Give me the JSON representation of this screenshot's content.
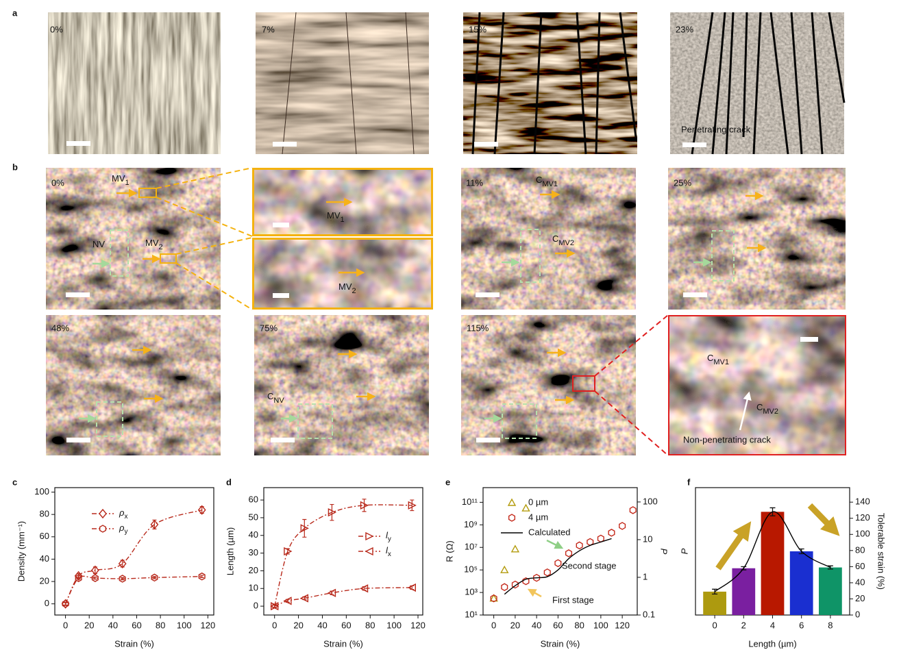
{
  "panel_labels": [
    "a",
    "b",
    "c",
    "d",
    "e",
    "f"
  ],
  "panel_a": {
    "labels": [
      "0%",
      "7%",
      "15%",
      "23%"
    ],
    "annotation": "Penetrating crack"
  },
  "panel_b": {
    "strain_labels": [
      "0%",
      "11%",
      "25%",
      "48%",
      "75%",
      "115%"
    ],
    "markers": [
      {
        "main": "MV",
        "sub": "1"
      },
      {
        "main": "NV"
      },
      {
        "main": "MV",
        "sub": "2"
      },
      {
        "main": "MV",
        "sub": "1"
      },
      {
        "main": "MV",
        "sub": "2"
      },
      {
        "main": "C",
        "sub": "MV1"
      },
      {
        "main": "C",
        "sub": "MV2"
      },
      {
        "main": "C",
        "sub": "NV"
      },
      {
        "main": "C",
        "sub": "MV1"
      },
      {
        "main": "C",
        "sub": "MV2"
      }
    ],
    "annotation": "Non-penetrating crack"
  },
  "chart_data": [
    {
      "type": "line",
      "xlabel": "Strain (%)",
      "ylabel": "Density (mm⁻¹)",
      "xlim": [
        -9,
        125
      ],
      "ylim": [
        -10,
        104
      ],
      "xticks": [
        0,
        20,
        40,
        60,
        80,
        100,
        120
      ],
      "yticks": [
        0,
        20,
        40,
        60,
        80,
        100
      ],
      "legend": "upper left",
      "legend_subscript": true,
      "series": [
        {
          "name": "ρx",
          "color": "#b8291b",
          "marker": "diamond",
          "linestyle": "dashdot",
          "x": [
            0,
            11,
            25,
            48,
            75,
            115
          ],
          "values": [
            0,
            25,
            30,
            36,
            71,
            84
          ],
          "errors": [
            1.5,
            2,
            3,
            3,
            4,
            3
          ]
        },
        {
          "name": "ρy",
          "color": "#b8291b",
          "marker": "hexagon",
          "linestyle": "dashdot",
          "x": [
            0,
            11,
            25,
            48,
            75,
            115
          ],
          "values": [
            0,
            23,
            23,
            22.5,
            23.5,
            24.5
          ],
          "errors": [
            1,
            1,
            1,
            1,
            1,
            1
          ]
        }
      ]
    },
    {
      "type": "line",
      "xlabel": "Strain (%)",
      "ylabel": "Length (µm)",
      "xlim": [
        -9,
        124
      ],
      "ylim": [
        -5,
        67
      ],
      "xticks": [
        0,
        20,
        40,
        60,
        80,
        100,
        120
      ],
      "yticks": [
        0,
        10,
        20,
        30,
        40,
        50,
        60
      ],
      "legend": "center right",
      "legend_subscript": true,
      "series": [
        {
          "name": "ly",
          "color": "#b8291b",
          "marker": "triangle-right",
          "linestyle": "dashdot",
          "x": [
            0,
            11,
            25,
            48,
            75,
            115
          ],
          "values": [
            0,
            31,
            44,
            53,
            57,
            57
          ],
          "errors": [
            1,
            1.5,
            5,
            4.5,
            3.5,
            3
          ]
        },
        {
          "name": "lx",
          "color": "#b8291b",
          "marker": "triangle-left",
          "linestyle": "dashdot",
          "x": [
            0,
            11,
            25,
            48,
            75,
            115
          ],
          "values": [
            0,
            3,
            4.5,
            7.5,
            10,
            10.5
          ],
          "errors": [
            0.8,
            0.8,
            0.8,
            1,
            1,
            1
          ]
        }
      ]
    },
    {
      "type": "scatter",
      "xlabel": "Strain (%)",
      "ylabel": "R (Ω)",
      "y2label": "P",
      "xlim": [
        -10,
        134
      ],
      "ylim": [
        10,
        2000000000000
      ],
      "ylog": true,
      "y2lim": [
        0.1,
        240
      ],
      "y2log": true,
      "xticks": [
        0,
        20,
        40,
        60,
        80,
        100,
        120
      ],
      "yticks": [
        {
          "value": 10,
          "label": "10¹"
        },
        {
          "value": 1000,
          "label": "10³"
        },
        {
          "value": 100000,
          "label": "10⁵"
        },
        {
          "value": 10000000,
          "label": "10⁷"
        },
        {
          "value": 1000000000,
          "label": "10⁹"
        },
        {
          "value": 100000000000,
          "label": "10¹¹"
        }
      ],
      "y2ticks": [
        0.1,
        1,
        10,
        100
      ],
      "legend": "upper left",
      "annotations": [
        "First stage",
        "Second stage"
      ],
      "series": [
        {
          "name": "0 µm",
          "color": "#b39b0c",
          "marker": "triangle-up",
          "x": [
            0,
            10,
            20,
            30
          ],
          "values": [
            300,
            100000,
            7000000,
            30000000000
          ]
        },
        {
          "name": "4 µm",
          "color": "#c42a1c",
          "marker": "hexagon",
          "x": [
            0,
            10,
            20,
            30,
            40,
            50,
            60,
            70,
            80,
            90,
            100,
            110,
            120,
            130
          ],
          "values": [
            300,
            3000,
            5000,
            10000,
            20000,
            60000,
            400000,
            3000000,
            15000000,
            30000000,
            60000000,
            200000000,
            800000000,
            20000000000
          ]
        },
        {
          "name": "Calculated",
          "color": "#000000",
          "linestyle": "solid",
          "x": [
            10,
            20,
            30,
            40,
            50,
            60,
            70,
            80,
            90,
            100,
            110
          ],
          "values": [
            700,
            4000,
            15000,
            20000,
            25000,
            100000,
            1000000,
            5000000,
            15000000,
            30000000,
            60000000
          ]
        }
      ]
    },
    {
      "type": "bar",
      "xlabel": "Length (µm)",
      "ylabel": "P",
      "y2label": "Tolerable strain (%)",
      "categories": [
        "0",
        "2",
        "4",
        "6",
        "8"
      ],
      "y2lim": [
        0,
        158
      ],
      "y2ticks": [
        0,
        20,
        40,
        60,
        80,
        100,
        120,
        140
      ],
      "curve": true,
      "series": [
        {
          "axis": "y2",
          "colors": [
            "#ad9a0f",
            "#7a1fa0",
            "#b81800",
            "#1a2fd0",
            "#0f9467"
          ],
          "values": [
            29,
            58,
            128,
            79,
            59
          ],
          "errors": [
            3,
            2,
            5,
            3,
            2
          ]
        }
      ]
    }
  ]
}
